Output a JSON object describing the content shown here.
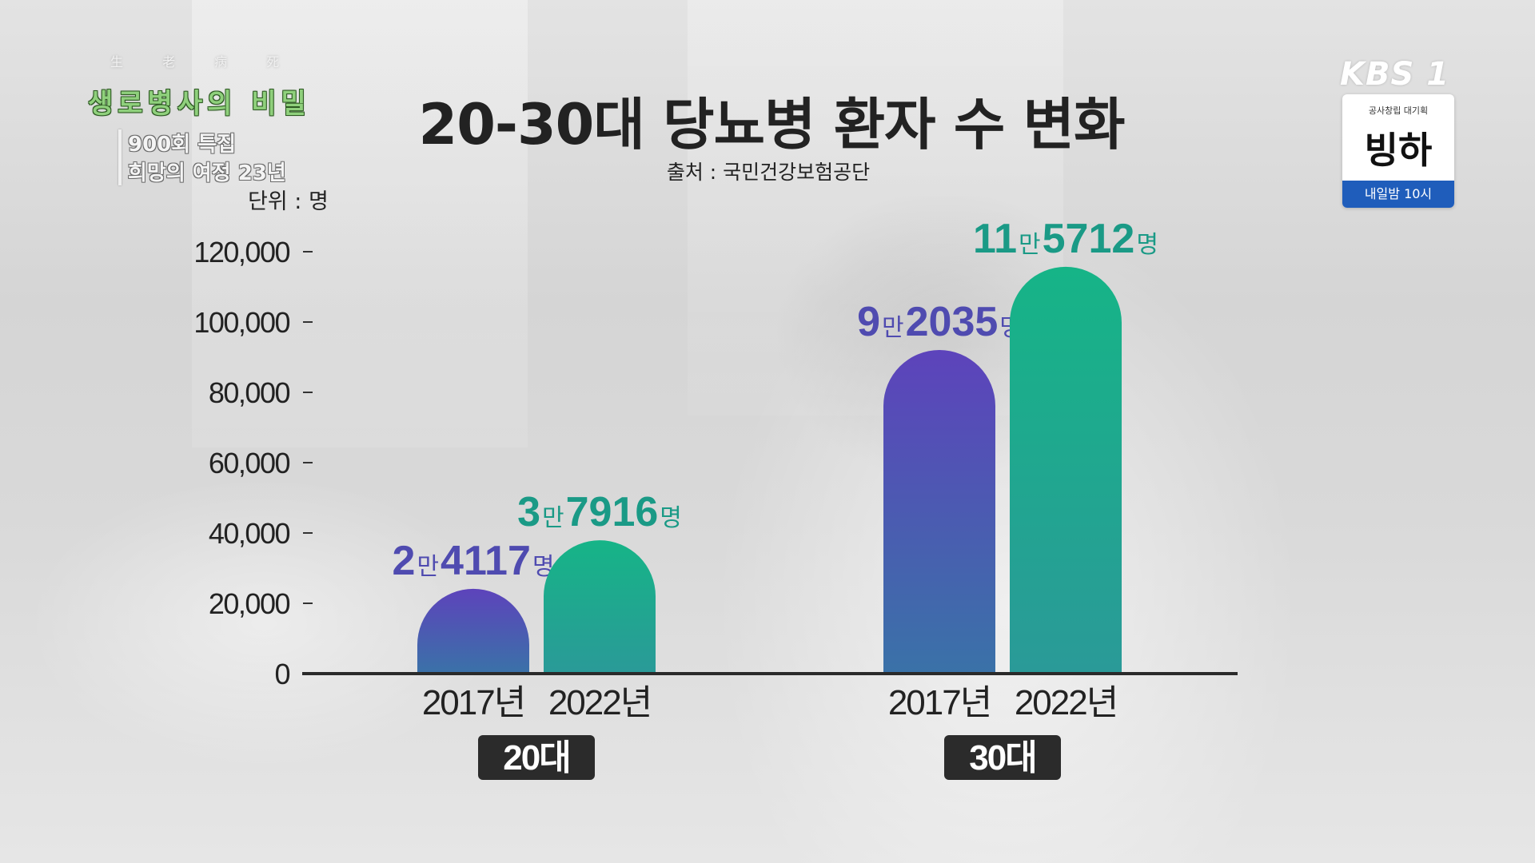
{
  "program": {
    "hanja": "生 老 病 死",
    "title": "생로병사의 비밀",
    "sub1": "900회 특집",
    "sub2": "희망의 여정 23년"
  },
  "kbs": {
    "logo": "KBS 1",
    "small": "공사창립 대기획",
    "big": "빙하",
    "time": "내일밤 10시"
  },
  "colors": {
    "series_2017": "#4a55b8",
    "series_2022": "#1ea38c",
    "label_2017": "#4f4bb0",
    "label_2022": "#1a9a86"
  },
  "chart_data": {
    "type": "bar",
    "title": "20-30대 당뇨병 환자 수 변화",
    "subtitle": "출처 : 국민건강보험공단",
    "unit_label": "단위 : 명",
    "ylim": [
      0,
      120000
    ],
    "yticks": [
      0,
      20000,
      40000,
      60000,
      80000,
      100000,
      120000
    ],
    "ytick_labels": [
      "0",
      "20,000",
      "40,000",
      "60,000",
      "80,000",
      "100,000",
      "120,000"
    ],
    "groups": [
      {
        "label": "20대",
        "bars": [
          {
            "year": "2017년",
            "value": 24117,
            "label_parts": [
              "2",
              "만",
              "4117",
              "명"
            ],
            "series": "2017"
          },
          {
            "year": "2022년",
            "value": 37916,
            "label_parts": [
              "3",
              "만",
              "7916",
              "명"
            ],
            "series": "2022"
          }
        ]
      },
      {
        "label": "30대",
        "bars": [
          {
            "year": "2017년",
            "value": 92035,
            "label_parts": [
              "9",
              "만",
              "2035",
              "명"
            ],
            "series": "2017"
          },
          {
            "year": "2022년",
            "value": 115712,
            "label_parts": [
              "11",
              "만",
              "5712",
              "명"
            ],
            "series": "2022"
          }
        ]
      }
    ],
    "grid": false
  }
}
